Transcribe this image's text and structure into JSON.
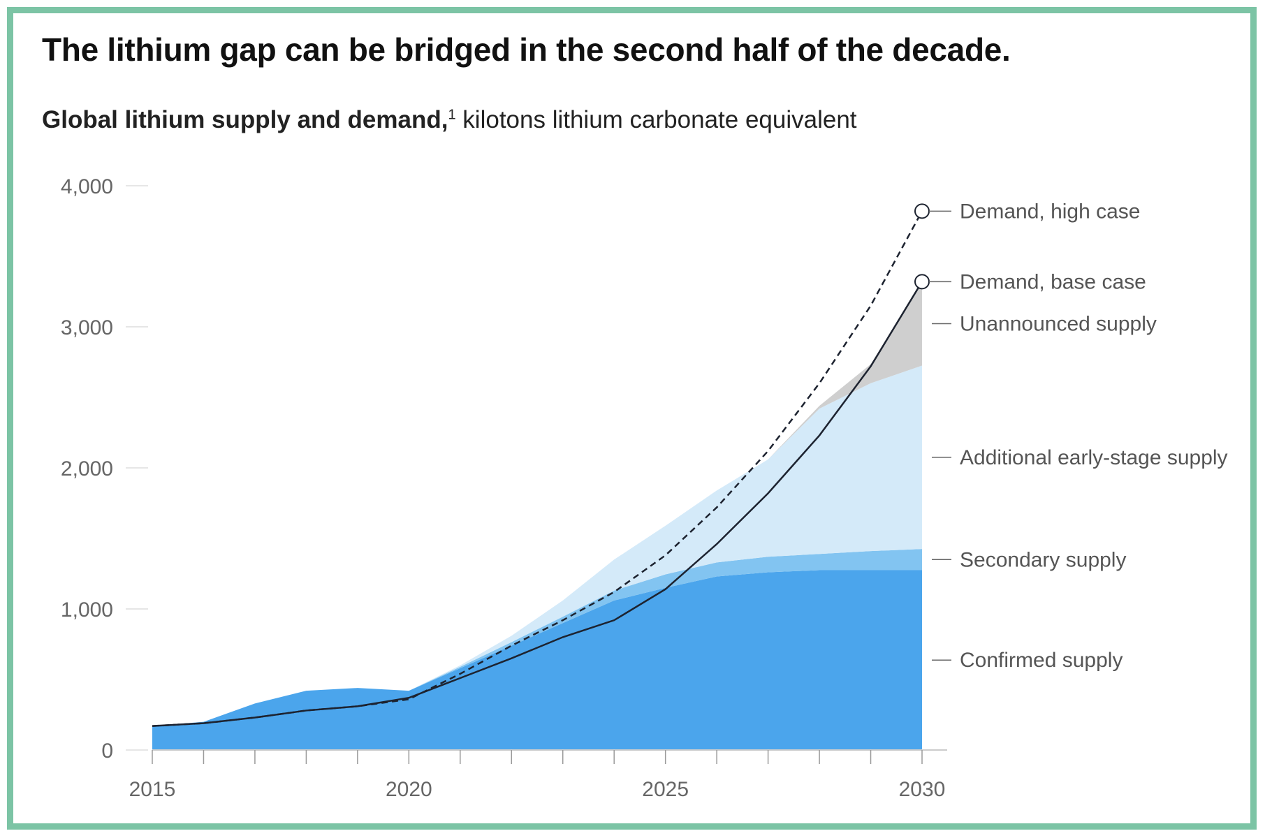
{
  "title": "The lithium gap can be bridged in the second half of the decade.",
  "subtitle_bold": "Global lithium supply and demand,",
  "subtitle_sup": "1",
  "subtitle_rest": "kilotons lithium carbonate equivalent",
  "colors": {
    "frame": "#7cc4a5",
    "confirmed": "#4ba5ec",
    "secondary": "#82c4f1",
    "early_stage": "#d4eaf9",
    "unannounced": "#cfcfcf",
    "demand": "#1d2330"
  },
  "chart_data": {
    "type": "area",
    "x": [
      2015,
      2016,
      2017,
      2018,
      2019,
      2020,
      2021,
      2022,
      2023,
      2024,
      2025,
      2026,
      2027,
      2028,
      2029,
      2030
    ],
    "xticks": [
      "2015",
      "2020",
      "2025",
      "2030"
    ],
    "yticks": [
      "0",
      "1,000",
      "2,000",
      "3,000",
      "4,000"
    ],
    "ylim": [
      0,
      4000
    ],
    "stacked_series": [
      {
        "name": "Confirmed supply",
        "values": [
          170,
          200,
          330,
          420,
          440,
          420,
          580,
          740,
          900,
          1060,
          1150,
          1230,
          1260,
          1275,
          1275,
          1275
        ]
      },
      {
        "name": "Secondary supply",
        "values": [
          0,
          0,
          0,
          0,
          0,
          0,
          10,
          25,
          45,
          70,
          95,
          100,
          110,
          115,
          135,
          150
        ]
      },
      {
        "name": "Additional early-stage supply",
        "values": [
          0,
          0,
          0,
          0,
          0,
          0,
          10,
          45,
          115,
          220,
          345,
          510,
          690,
          1030,
          1190,
          1300
        ]
      },
      {
        "name": "Unannounced supply",
        "values": [
          0,
          0,
          0,
          0,
          0,
          0,
          0,
          0,
          0,
          0,
          0,
          0,
          0,
          20,
          135,
          595
        ]
      }
    ],
    "lines": [
      {
        "name": "Demand, high case",
        "style": "dashed",
        "values": [
          170,
          190,
          230,
          280,
          310,
          360,
          540,
          740,
          920,
          1120,
          1380,
          1720,
          2120,
          2600,
          3150,
          3820
        ]
      },
      {
        "name": "Demand, base case",
        "style": "solid",
        "values": [
          170,
          190,
          230,
          280,
          310,
          370,
          510,
          650,
          800,
          920,
          1140,
          1460,
          1820,
          2230,
          2720,
          3320
        ]
      }
    ]
  }
}
